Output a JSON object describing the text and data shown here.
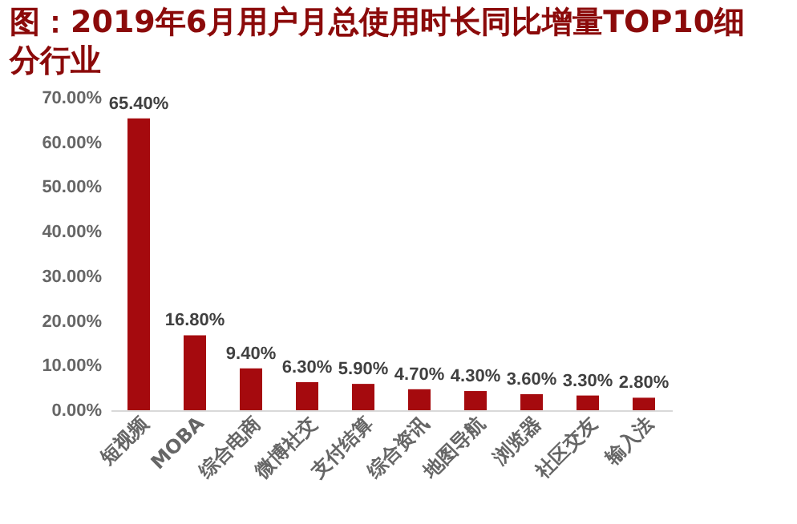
{
  "chart_data": {
    "type": "bar",
    "title": "图：2019年6月用户月总使用时长同比增量TOP10细分行业",
    "categories": [
      "短视频",
      "MOBA",
      "综合电商",
      "微博社交",
      "支付结算",
      "综合资讯",
      "地图导航",
      "浏览器",
      "社区交友",
      "输入法"
    ],
    "values": [
      65.4,
      16.8,
      9.4,
      6.3,
      5.9,
      4.7,
      4.3,
      3.6,
      3.3,
      2.8
    ],
    "value_labels": [
      "65.40%",
      "16.80%",
      "9.40%",
      "6.30%",
      "5.90%",
      "4.70%",
      "4.30%",
      "3.60%",
      "3.30%",
      "2.80%"
    ],
    "color": "#a50a0e",
    "ylim": [
      0,
      70
    ],
    "yticks": [
      {
        "value": 0,
        "label": "0.00%"
      },
      {
        "value": 10,
        "label": "10.00%"
      },
      {
        "value": 20,
        "label": "20.00%"
      },
      {
        "value": 30,
        "label": "30.00%"
      },
      {
        "value": 40,
        "label": "40.00%"
      },
      {
        "value": 50,
        "label": "50.00%"
      },
      {
        "value": 60,
        "label": "60.00%"
      },
      {
        "value": 70,
        "label": "70.00%"
      }
    ],
    "grid": false
  }
}
